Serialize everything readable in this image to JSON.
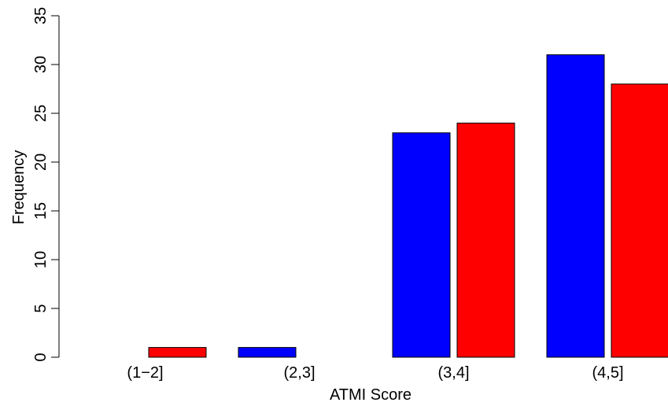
{
  "chart_data": {
    "type": "bar",
    "categories": [
      "(1−2]",
      "(2,3]",
      "(3,4]",
      "(4,5]"
    ],
    "series": [
      {
        "values": [
          0,
          1,
          23,
          31
        ],
        "color": "#0000ff"
      },
      {
        "values": [
          1,
          0,
          24,
          28
        ],
        "color": "#ff0000"
      }
    ],
    "xlabel": "ATMI Score",
    "ylabel": "Frequency",
    "ylim": [
      0,
      35
    ],
    "yticks": [
      0,
      5,
      10,
      15,
      20,
      25,
      30,
      35
    ],
    "grid": false,
    "legend": "none"
  }
}
